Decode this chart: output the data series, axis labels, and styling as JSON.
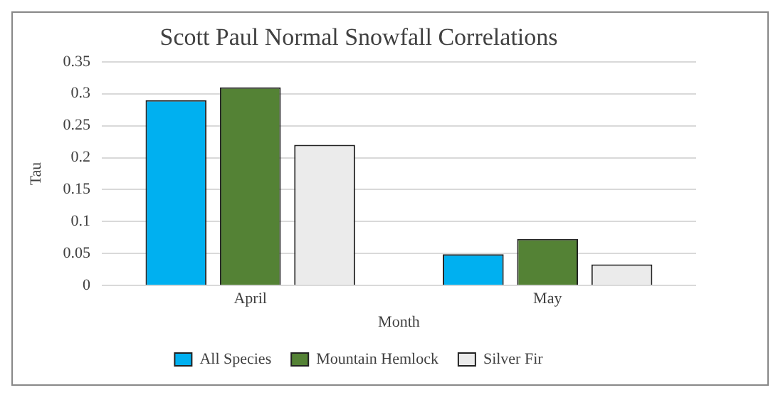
{
  "chart_data": {
    "type": "bar",
    "title": "Scott Paul Normal Snowfall Correlations",
    "xlabel": "Month",
    "ylabel": "Tau",
    "categories": [
      "April",
      "May"
    ],
    "series": [
      {
        "name": "All Species",
        "color": "#00b0f0",
        "values": [
          0.29,
          0.049
        ]
      },
      {
        "name": "Mountain Hemlock",
        "color": "#548235",
        "values": [
          0.31,
          0.073
        ]
      },
      {
        "name": "Silver Fir",
        "color": "#ebebeb",
        "values": [
          0.22,
          0.033
        ]
      }
    ],
    "ylim": [
      0,
      0.35
    ],
    "yticks": [
      0,
      0.05,
      0.1,
      0.15,
      0.2,
      0.25,
      0.3,
      0.35
    ],
    "grid": "y",
    "legend": "bottom"
  }
}
